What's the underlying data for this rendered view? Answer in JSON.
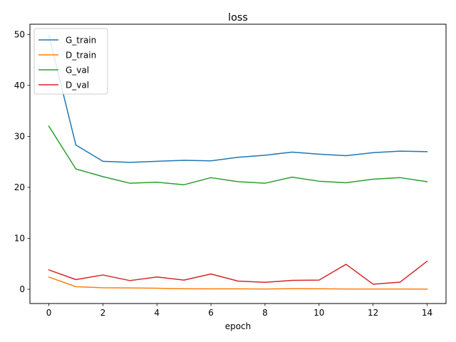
{
  "chart_data": {
    "type": "line",
    "title": "loss",
    "xlabel": "epoch",
    "ylabel": "",
    "xlim": [
      -0.7,
      14.7
    ],
    "ylim": [
      -2.8,
      52.0
    ],
    "xticks": [
      0,
      2,
      4,
      6,
      8,
      10,
      12,
      14
    ],
    "yticks": [
      0,
      10,
      20,
      30,
      40,
      50
    ],
    "grid": false,
    "legend_position": "top-left",
    "x": [
      0,
      1,
      2,
      3,
      4,
      5,
      6,
      7,
      8,
      9,
      10,
      11,
      12,
      13,
      14
    ],
    "series": [
      {
        "name": "G_train",
        "color": "#1f77b4",
        "values": [
          49.8,
          28.3,
          25.1,
          24.9,
          25.1,
          25.3,
          25.2,
          25.9,
          26.3,
          26.9,
          26.5,
          26.2,
          26.8,
          27.1,
          27.0
        ]
      },
      {
        "name": "D_train",
        "color": "#ff7f0e",
        "values": [
          2.4,
          0.5,
          0.3,
          0.25,
          0.2,
          0.1,
          0.08,
          0.08,
          0.05,
          0.12,
          0.1,
          0.05,
          0.05,
          0.05,
          0.03
        ]
      },
      {
        "name": "G_val",
        "color": "#2ca02c",
        "values": [
          32.0,
          23.6,
          22.1,
          20.8,
          21.0,
          20.5,
          21.9,
          21.1,
          20.8,
          22.0,
          21.2,
          20.9,
          21.6,
          21.9,
          21.1
        ]
      },
      {
        "name": "D_val",
        "color": "#d62728",
        "values": [
          3.8,
          1.9,
          2.8,
          1.7,
          2.4,
          1.8,
          3.0,
          1.6,
          1.35,
          1.75,
          1.8,
          4.9,
          1.0,
          1.4,
          5.5
        ]
      }
    ]
  }
}
